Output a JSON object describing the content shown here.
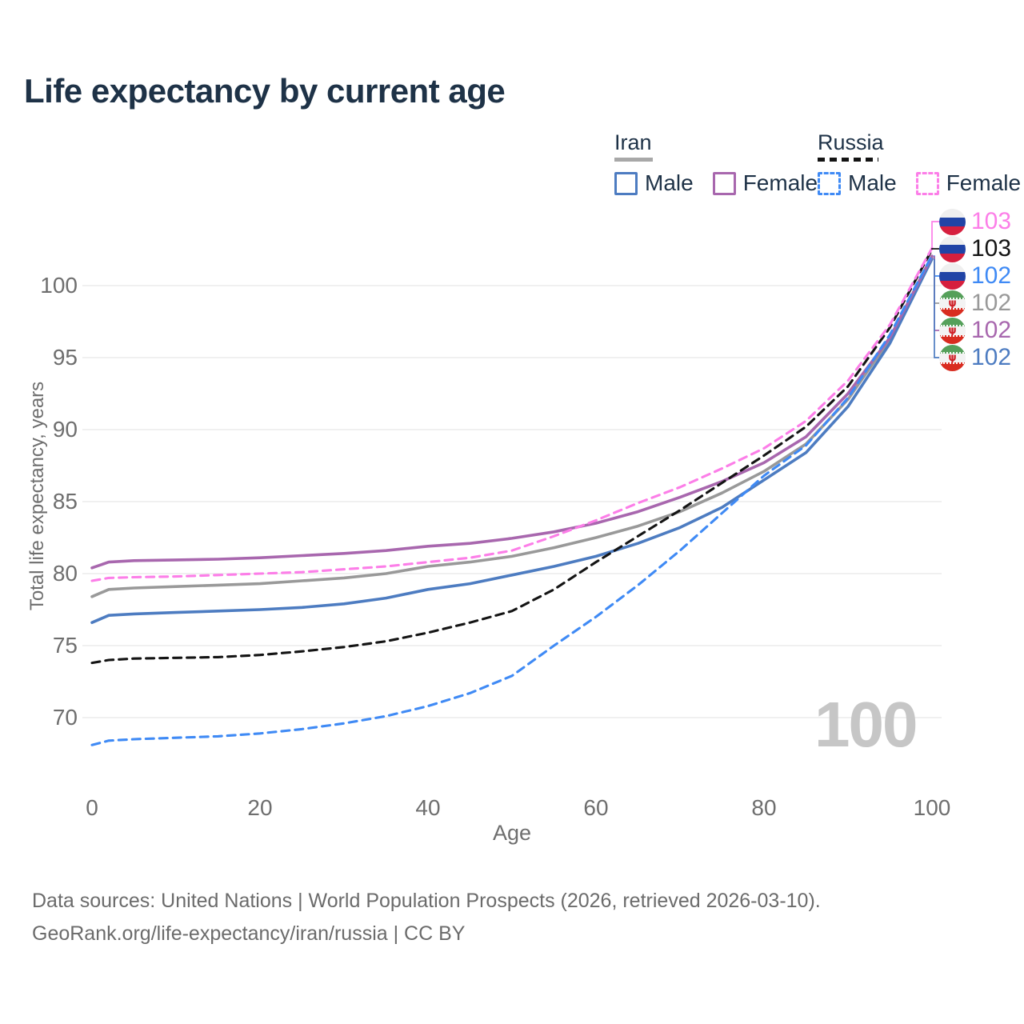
{
  "title": "Life expectancy by current age",
  "legend": {
    "iran": {
      "label": "Iran",
      "male": "Male",
      "female": "Female"
    },
    "russia": {
      "label": "Russia",
      "male": "Male",
      "female": "Female"
    }
  },
  "chart_data": {
    "type": "line",
    "title": "Life expectancy by current age",
    "xlabel": "Age",
    "ylabel": "Total life expectancy, years",
    "x_ticks": [
      0,
      20,
      40,
      60,
      80,
      100
    ],
    "y_ticks": [
      70,
      75,
      80,
      85,
      90,
      95,
      100
    ],
    "xlim": [
      0,
      100
    ],
    "ylim": [
      66.5,
      103.5
    ],
    "grid": "horizontal",
    "ages": [
      0,
      2,
      5,
      10,
      15,
      20,
      25,
      30,
      35,
      40,
      45,
      50,
      55,
      60,
      65,
      70,
      75,
      80,
      85,
      90,
      95,
      100
    ],
    "series": [
      {
        "key": "iran_total",
        "name": "Iran Both sexes",
        "country": "Iran",
        "sex": "Total",
        "color": "#999999",
        "dashed": false,
        "values": [
          78.4,
          78.9,
          79.0,
          79.1,
          79.2,
          79.3,
          79.5,
          79.7,
          80.0,
          80.5,
          80.8,
          81.2,
          81.8,
          82.5,
          83.3,
          84.3,
          85.6,
          87.1,
          89.0,
          92.1,
          96.3,
          102.0
        ]
      },
      {
        "key": "iran_male",
        "name": "Iran Male",
        "country": "Iran",
        "sex": "Male",
        "color": "#4d7cc1",
        "dashed": false,
        "values": [
          76.6,
          77.1,
          77.2,
          77.3,
          77.4,
          77.5,
          77.65,
          77.9,
          78.3,
          78.9,
          79.3,
          79.9,
          80.5,
          81.2,
          82.1,
          83.2,
          84.6,
          86.5,
          88.4,
          91.6,
          96.0,
          101.85
        ]
      },
      {
        "key": "iran_female",
        "name": "Iran Female",
        "country": "Iran",
        "sex": "Female",
        "color": "#a867ae",
        "dashed": false,
        "values": [
          80.4,
          80.8,
          80.9,
          80.95,
          81.0,
          81.1,
          81.25,
          81.4,
          81.6,
          81.9,
          82.1,
          82.45,
          82.9,
          83.5,
          84.3,
          85.3,
          86.4,
          87.7,
          89.5,
          92.5,
          96.4,
          102.05
        ]
      },
      {
        "key": "russia_male",
        "name": "Russia Male",
        "country": "Russia",
        "sex": "Male",
        "color": "#3f8af5",
        "dashed": true,
        "values": [
          68.1,
          68.4,
          68.5,
          68.6,
          68.7,
          68.9,
          69.2,
          69.6,
          70.1,
          70.8,
          71.7,
          72.9,
          75.0,
          77.0,
          79.2,
          81.6,
          84.2,
          86.8,
          88.9,
          92.2,
          96.6,
          102.1
        ]
      },
      {
        "key": "russia_total",
        "name": "Russia Both sexes",
        "country": "Russia",
        "sex": "Total",
        "color": "#141414",
        "dashed": true,
        "values": [
          73.8,
          74.0,
          74.1,
          74.15,
          74.2,
          74.35,
          74.6,
          74.9,
          75.3,
          75.9,
          76.6,
          77.4,
          78.9,
          80.8,
          82.6,
          84.4,
          86.3,
          88.2,
          90.2,
          93.0,
          97.1,
          102.5
        ]
      },
      {
        "key": "russia_female",
        "name": "Russia Female",
        "country": "Russia",
        "sex": "Female",
        "color": "#fc7ee8",
        "dashed": true,
        "values": [
          79.5,
          79.7,
          79.75,
          79.8,
          79.9,
          80.0,
          80.1,
          80.3,
          80.5,
          80.8,
          81.1,
          81.6,
          82.6,
          83.7,
          84.9,
          86.0,
          87.3,
          88.7,
          90.6,
          93.4,
          97.3,
          102.6
        ]
      }
    ]
  },
  "end_labels": [
    {
      "series": "russia_female",
      "flag": "russia",
      "value": "103"
    },
    {
      "series": "russia_total",
      "flag": "russia",
      "value": "103"
    },
    {
      "series": "russia_male",
      "flag": "russia",
      "value": "102"
    },
    {
      "series": "iran_total",
      "flag": "iran",
      "value": "102"
    },
    {
      "series": "iran_female",
      "flag": "iran",
      "value": "102"
    },
    {
      "series": "iran_male",
      "flag": "iran",
      "value": "102"
    }
  ],
  "watermark": "100",
  "footer": {
    "line1": "Data sources: United Nations | World Population Prospects (2026, retrieved 2026-03-10).",
    "line2": "GeoRank.org/life-expectancy/iran/russia | CC BY"
  }
}
